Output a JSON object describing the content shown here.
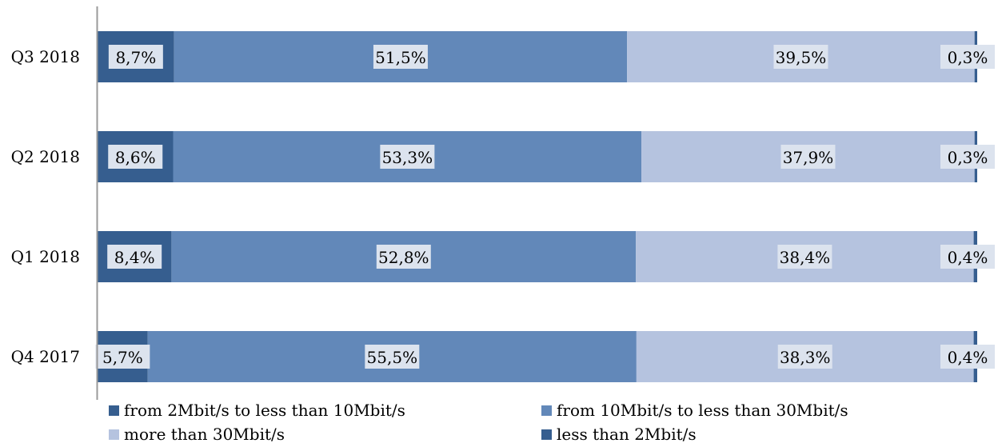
{
  "chart_data": {
    "type": "bar",
    "orientation": "horizontal",
    "stacked": true,
    "percent_stacked": true,
    "categories": [
      "Q3 2018",
      "Q2 2018",
      "Q1 2018",
      "Q4 2017"
    ],
    "series": [
      {
        "name": "from 2Mbit/s to less than 10Mbit/s",
        "color": "#365e8f",
        "values": [
          8.7,
          8.6,
          8.4,
          5.7
        ],
        "labels": [
          "8,7%",
          "8,6%",
          "8,4%",
          "5,7%"
        ]
      },
      {
        "name": "from 10Mbit/s to less than 30Mbit/s",
        "color": "#6288b9",
        "values": [
          51.5,
          53.3,
          52.8,
          55.5
        ],
        "labels": [
          "51,5%",
          "53,3%",
          "52,8%",
          "55,5%"
        ]
      },
      {
        "name": "more than 30Mbit/s",
        "color": "#b5c3df",
        "values": [
          39.5,
          37.9,
          38.4,
          38.3
        ],
        "labels": [
          "39,5%",
          "37,9%",
          "38,4%",
          "38,3%"
        ]
      },
      {
        "name": "less than 2Mbit/s",
        "color": "#365e8f",
        "values": [
          0.3,
          0.3,
          0.4,
          0.4
        ],
        "labels": [
          "0,3%",
          "0,3%",
          "0,4%",
          "0,4%"
        ]
      }
    ],
    "xlim": [
      0,
      100
    ],
    "grid": false,
    "legend_position": "bottom"
  }
}
